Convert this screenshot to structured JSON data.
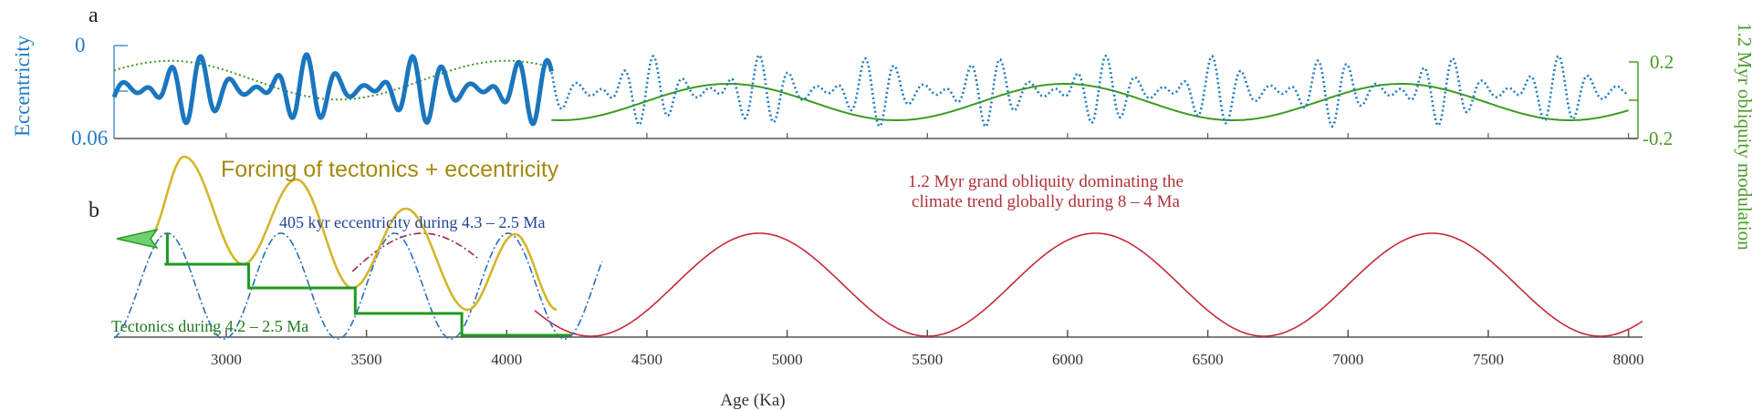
{
  "panels": {
    "a": "a",
    "b": "b"
  },
  "chart_data": [
    {
      "panel": "a",
      "type": "line",
      "xlim": [
        2600,
        8050
      ],
      "y_left": {
        "label": "Eccentricity",
        "ticks": [
          "0",
          "0.06"
        ],
        "range": [
          0,
          0.06
        ],
        "inverted": true,
        "color": "#1f7dc1"
      },
      "y_right": {
        "label": "1.2 Myr obliquity modulation",
        "ticks": [
          "0.2",
          "-0.2"
        ],
        "range": [
          -0.2,
          0.2
        ],
        "color": "#4a9a2a"
      },
      "series": [
        {
          "style": "solid-thick",
          "color": "#1f7dc1",
          "x_range": [
            2600,
            4160
          ]
        },
        {
          "style": "dotted",
          "color": "#1f7dc1",
          "x_range": [
            4160,
            8000
          ]
        },
        {
          "style": "dotted",
          "color": "#4a9a2a",
          "x_range": [
            2600,
            4160
          ],
          "period_kyr": 1200
        },
        {
          "style": "solid",
          "color": "#4a9a2a",
          "x_range": [
            4160,
            8000
          ],
          "period_kyr": 1200
        }
      ]
    },
    {
      "panel": "b",
      "type": "line",
      "xlim": [
        2600,
        8050
      ],
      "x_ticks": [
        3000,
        3500,
        4000,
        4500,
        5000,
        5500,
        6000,
        6500,
        7000,
        7500,
        8000
      ],
      "xlabel": "Age (Ka)",
      "annotations": {
        "forcing": "Forcing of tectonics + eccentricity",
        "obliquity_line1": "1.2 Myr grand obliquity dominating the",
        "obliquity_line2": "climate trend globally during 8 – 4 Ma",
        "eccentricity": "405 kyr eccentricity during 4.3 – 2.5 Ma",
        "tectonics": "Tectonics during 4.2 – 2.5 Ma"
      },
      "series": [
        {
          "name_ref": "obliquity",
          "style": "solid",
          "color": "#c42a3a",
          "period_kyr": 1200,
          "troughs_kyr": [
            4300,
            5500,
            6700,
            7900
          ],
          "peaks_kyr": [
            4900,
            6100,
            7300
          ],
          "x_range": [
            4100,
            8050
          ]
        },
        {
          "name_ref": "obliquity-extension",
          "style": "dash-dot",
          "color": "#9b2a4a",
          "x_range": [
            3450,
            3900
          ]
        },
        {
          "name_ref": "eccentricity",
          "style": "dash-dot",
          "color": "#2a6fc0",
          "period_kyr": 405,
          "peaks_kyr": [
            2790,
            3220,
            3620,
            4030
          ],
          "x_range": [
            2600,
            4340
          ]
        },
        {
          "name_ref": "forcing",
          "style": "solid",
          "color": "#d4b62a",
          "peaks_kyr": [
            2850,
            3250,
            3640,
            4030
          ],
          "troughs_kyr": [
            3060,
            3450,
            3860
          ],
          "x_range": [
            2720,
            4180
          ]
        },
        {
          "name_ref": "tectonics",
          "style": "step",
          "color": "#1f9a1f",
          "steps": [
            [
              2780,
              3080,
              4
            ],
            [
              3080,
              3460,
              3
            ],
            [
              3460,
              3840,
              2
            ],
            [
              3840,
              4230,
              1
            ]
          ]
        }
      ]
    }
  ]
}
